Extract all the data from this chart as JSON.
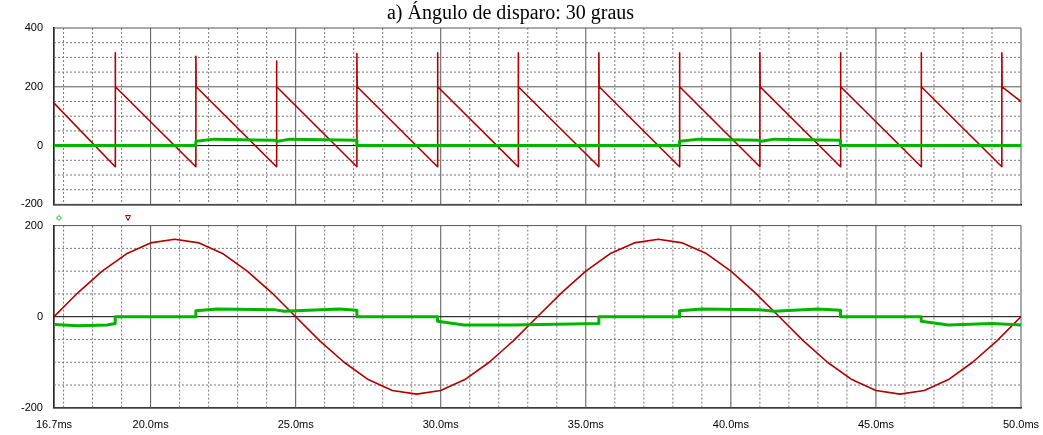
{
  "chart_data": [
    {
      "type": "line",
      "title": "a) Ángulo de disparo: 30 graus",
      "marker": "none",
      "grid": true,
      "tick_labels": "y",
      "xlim": [
        16.67,
        50.0
      ],
      "xticks": [
        {
          "value": 16.67,
          "label": null
        },
        {
          "value": 17,
          "label": null
        },
        {
          "value": 18,
          "label": null
        },
        {
          "value": 19,
          "label": null
        },
        {
          "value": 20,
          "label": null
        },
        {
          "value": 21,
          "label": null
        },
        {
          "value": 22,
          "label": null
        },
        {
          "value": 23,
          "label": null
        },
        {
          "value": 24,
          "label": null
        },
        {
          "value": 25,
          "label": null
        },
        {
          "value": 26,
          "label": null
        },
        {
          "value": 27,
          "label": null
        },
        {
          "value": 28,
          "label": null
        },
        {
          "value": 29,
          "label": null
        },
        {
          "value": 30,
          "label": null
        },
        {
          "value": 31,
          "label": null
        },
        {
          "value": 32,
          "label": null
        },
        {
          "value": 33,
          "label": null
        },
        {
          "value": 34,
          "label": null
        },
        {
          "value": 35,
          "label": null
        },
        {
          "value": 36,
          "label": null
        },
        {
          "value": 37,
          "label": null
        },
        {
          "value": 38,
          "label": null
        },
        {
          "value": 39,
          "label": null
        },
        {
          "value": 40,
          "label": null
        },
        {
          "value": 41,
          "label": null
        },
        {
          "value": 42,
          "label": null
        },
        {
          "value": 43,
          "label": null
        },
        {
          "value": 44,
          "label": null
        },
        {
          "value": 45,
          "label": null
        },
        {
          "value": 46,
          "label": null
        },
        {
          "value": 47,
          "label": null
        },
        {
          "value": 48,
          "label": null
        },
        {
          "value": 49,
          "label": null
        },
        {
          "value": 50,
          "label": null
        }
      ],
      "ylim": [
        -200,
        400
      ],
      "yticks": [
        -200,
        {
          "value": -150,
          "label": null
        },
        {
          "value": -100,
          "label": null
        },
        {
          "value": -50,
          "label": null
        },
        0,
        {
          "value": 50,
          "label": null
        },
        {
          "value": 100,
          "label": null
        },
        {
          "value": 150,
          "label": null
        },
        200,
        {
          "value": 250,
          "label": null
        },
        {
          "value": 300,
          "label": null
        },
        {
          "value": 350,
          "label": null
        },
        400
      ],
      "series": [
        {
          "color": "#00b400",
          "x": [
            16.67,
            21.56,
            21.56,
            22.2,
            24.3,
            24.34,
            24.8,
            27.1,
            27.11,
            38.23,
            38.23,
            38.9,
            41.0,
            41.0,
            41.5,
            43.77,
            43.78,
            50.0
          ],
          "values": [
            0,
            0,
            15,
            22,
            18,
            14,
            22,
            18,
            0,
            0,
            15,
            22,
            18,
            14,
            22,
            18,
            0,
            0
          ]
        },
        {
          "color": "#b00000",
          "x": [
            16.67,
            18.78,
            18.78,
            18.79,
            21.56,
            21.56,
            21.57,
            24.34,
            24.34,
            24.35,
            27.11,
            27.11,
            27.12,
            29.89,
            29.89,
            29.9,
            32.67,
            32.67,
            32.68,
            35.45,
            35.45,
            35.46,
            38.23,
            38.23,
            38.24,
            41.0,
            41.0,
            41.01,
            43.78,
            43.78,
            43.79,
            46.56,
            46.56,
            46.57,
            49.34,
            49.34,
            49.35,
            50.0
          ],
          "values": [
            145,
            -72,
            316,
            200,
            -72,
            304,
            200,
            -72,
            288,
            200,
            -72,
            313,
            200,
            -72,
            316,
            200,
            -72,
            316,
            200,
            -72,
            316,
            200,
            -72,
            316,
            200,
            -72,
            316,
            200,
            -72,
            316,
            200,
            -72,
            316,
            200,
            -72,
            316,
            200,
            150
          ]
        }
      ]
    },
    {
      "type": "line",
      "marker": "none",
      "grid": true,
      "xlim": [
        16.67,
        50.0
      ],
      "xticks": [
        {
          "value": 16.67,
          "label": "16.7ms"
        },
        {
          "value": 17,
          "label": null
        },
        {
          "value": 18,
          "label": null
        },
        {
          "value": 19,
          "label": null
        },
        {
          "value": 20,
          "label": "20.0ms"
        },
        {
          "value": 21,
          "label": null
        },
        {
          "value": 22,
          "label": null
        },
        {
          "value": 23,
          "label": null
        },
        {
          "value": 24,
          "label": null
        },
        {
          "value": 25,
          "label": "25.0ms"
        },
        {
          "value": 26,
          "label": null
        },
        {
          "value": 27,
          "label": null
        },
        {
          "value": 28,
          "label": null
        },
        {
          "value": 29,
          "label": null
        },
        {
          "value": 30,
          "label": "30.0ms"
        },
        {
          "value": 31,
          "label": null
        },
        {
          "value": 32,
          "label": null
        },
        {
          "value": 33,
          "label": null
        },
        {
          "value": 34,
          "label": null
        },
        {
          "value": 35,
          "label": "35.0ms"
        },
        {
          "value": 36,
          "label": null
        },
        {
          "value": 37,
          "label": null
        },
        {
          "value": 38,
          "label": null
        },
        {
          "value": 39,
          "label": null
        },
        {
          "value": 40,
          "label": "40.0ms"
        },
        {
          "value": 41,
          "label": null
        },
        {
          "value": 42,
          "label": null
        },
        {
          "value": 43,
          "label": null
        },
        {
          "value": 44,
          "label": null
        },
        {
          "value": 45,
          "label": "45.0ms"
        },
        {
          "value": 46,
          "label": null
        },
        {
          "value": 47,
          "label": null
        },
        {
          "value": 48,
          "label": null
        },
        {
          "value": 49,
          "label": null
        },
        {
          "value": 50,
          "label": "50.0ms"
        }
      ],
      "ylim": [
        -200,
        200
      ],
      "yticks": [
        -200,
        {
          "value": -150,
          "label": null
        },
        {
          "value": -100,
          "label": null
        },
        {
          "value": -50,
          "label": null
        },
        0,
        {
          "value": 50,
          "label": null
        },
        {
          "value": 100,
          "label": null
        },
        {
          "value": 150,
          "label": null
        },
        200
      ],
      "series": [
        {
          "color": "#00b400",
          "x": [
            16.67,
            17.5,
            18.5,
            18.78,
            18.78,
            21.56,
            21.56,
            22.3,
            24.3,
            24.6,
            26.5,
            27.11,
            27.11,
            29.89,
            29.89,
            30.8,
            32.5,
            35.45,
            35.45,
            38.23,
            38.23,
            39.0,
            41.0,
            41.5,
            43.0,
            43.78,
            43.78,
            46.56,
            46.56,
            47.5,
            49.0,
            50.0
          ],
          "values": [
            -17,
            -20,
            -18,
            -15,
            0,
            0,
            13,
            17,
            15,
            12,
            17,
            14,
            0,
            0,
            -10,
            -18,
            -18,
            -15,
            0,
            0,
            13,
            17,
            15,
            12,
            17,
            14,
            0,
            0,
            -10,
            -18,
            -15,
            -18
          ]
        },
        {
          "color": "#b00000",
          "x": [
            16.67,
            17.5,
            18.33,
            19.17,
            20.0,
            20.83,
            21.67,
            22.5,
            23.33,
            24.17,
            25.0,
            25.83,
            26.67,
            27.5,
            28.33,
            29.17,
            30.0,
            30.83,
            31.67,
            32.5,
            33.33,
            34.17,
            35.0,
            35.83,
            36.67,
            37.5,
            38.33,
            39.17,
            40.0,
            40.83,
            41.67,
            42.5,
            43.33,
            44.17,
            45.0,
            45.83,
            46.67,
            47.5,
            48.33,
            49.17,
            50.0
          ],
          "values": [
            0,
            53,
            100,
            138,
            162,
            170,
            162,
            138,
            100,
            53,
            0,
            -53,
            -100,
            -138,
            -162,
            -170,
            -162,
            -138,
            -100,
            -53,
            0,
            53,
            100,
            138,
            162,
            170,
            162,
            138,
            100,
            53,
            0,
            -53,
            -100,
            -138,
            -162,
            -170,
            -162,
            -138,
            -100,
            -53,
            0
          ]
        }
      ]
    }
  ]
}
